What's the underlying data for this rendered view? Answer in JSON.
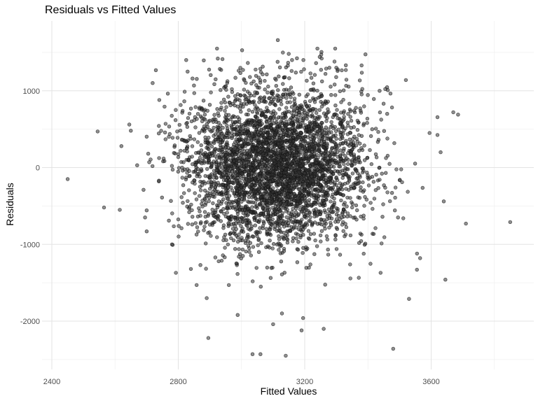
{
  "chart_data": {
    "type": "scatter",
    "title": "Residuals vs Fitted Values",
    "xlabel": "Fitted Values",
    "ylabel": "Residuals",
    "xlim": [
      2390,
      3900
    ],
    "ylim": [
      -2520,
      1730
    ],
    "xticks": [
      2400,
      2800,
      3200,
      3600
    ],
    "xtick_labels": [
      "2400",
      "2800",
      "3200",
      "3600"
    ],
    "yticks": [
      -2000,
      -1000,
      0,
      1000
    ],
    "ytick_labels": [
      "-2000",
      "-1000",
      "0",
      "1000"
    ],
    "grid": true,
    "legend": "none",
    "point_color": "#333333",
    "point_alpha": 0.55,
    "approx_point_count": 4000,
    "points": [
      {
        "x": 2450,
        "y": -150
      },
      {
        "x": 2545,
        "y": 470
      },
      {
        "x": 2565,
        "y": -520
      },
      {
        "x": 2615,
        "y": -550
      },
      {
        "x": 2620,
        "y": 280
      },
      {
        "x": 2645,
        "y": 560
      },
      {
        "x": 2650,
        "y": 480
      },
      {
        "x": 2670,
        "y": 30
      },
      {
        "x": 2690,
        "y": -290
      },
      {
        "x": 2695,
        "y": -650
      },
      {
        "x": 2705,
        "y": 180
      },
      {
        "x": 2708,
        "y": 70
      },
      {
        "x": 2740,
        "y": 880
      },
      {
        "x": 2760,
        "y": 570
      },
      {
        "x": 2780,
        "y": -1000
      },
      {
        "x": 2825,
        "y": 1400
      },
      {
        "x": 2840,
        "y": -1320
      },
      {
        "x": 2845,
        "y": 1160
      },
      {
        "x": 2858,
        "y": -1530
      },
      {
        "x": 2890,
        "y": -1700
      },
      {
        "x": 2895,
        "y": -2220
      },
      {
        "x": 2925,
        "y": 1420
      },
      {
        "x": 2960,
        "y": -1530
      },
      {
        "x": 2988,
        "y": -1920
      },
      {
        "x": 3035,
        "y": -2430
      },
      {
        "x": 3055,
        "y": -1100
      },
      {
        "x": 3060,
        "y": -2430
      },
      {
        "x": 3100,
        "y": -2040
      },
      {
        "x": 3115,
        "y": 1660
      },
      {
        "x": 3128,
        "y": -1900
      },
      {
        "x": 3140,
        "y": -2450
      },
      {
        "x": 3160,
        "y": 1400
      },
      {
        "x": 3190,
        "y": -2120
      },
      {
        "x": 3195,
        "y": -1960
      },
      {
        "x": 3240,
        "y": 1550
      },
      {
        "x": 3260,
        "y": -2100
      },
      {
        "x": 3278,
        "y": 1300
      },
      {
        "x": 3300,
        "y": 1300
      },
      {
        "x": 3330,
        "y": 1270
      },
      {
        "x": 3380,
        "y": 1330
      },
      {
        "x": 3440,
        "y": -1370
      },
      {
        "x": 3480,
        "y": -2360
      },
      {
        "x": 3520,
        "y": 1140
      },
      {
        "x": 3530,
        "y": -1710
      },
      {
        "x": 3555,
        "y": -1330
      },
      {
        "x": 3565,
        "y": -1180
      },
      {
        "x": 3595,
        "y": 450
      },
      {
        "x": 3630,
        "y": 200
      },
      {
        "x": 3640,
        "y": -440
      },
      {
        "x": 3645,
        "y": -1460
      },
      {
        "x": 3670,
        "y": 720
      },
      {
        "x": 3685,
        "y": 690
      },
      {
        "x": 3710,
        "y": -730
      },
      {
        "x": 3850,
        "y": -710
      }
    ]
  }
}
